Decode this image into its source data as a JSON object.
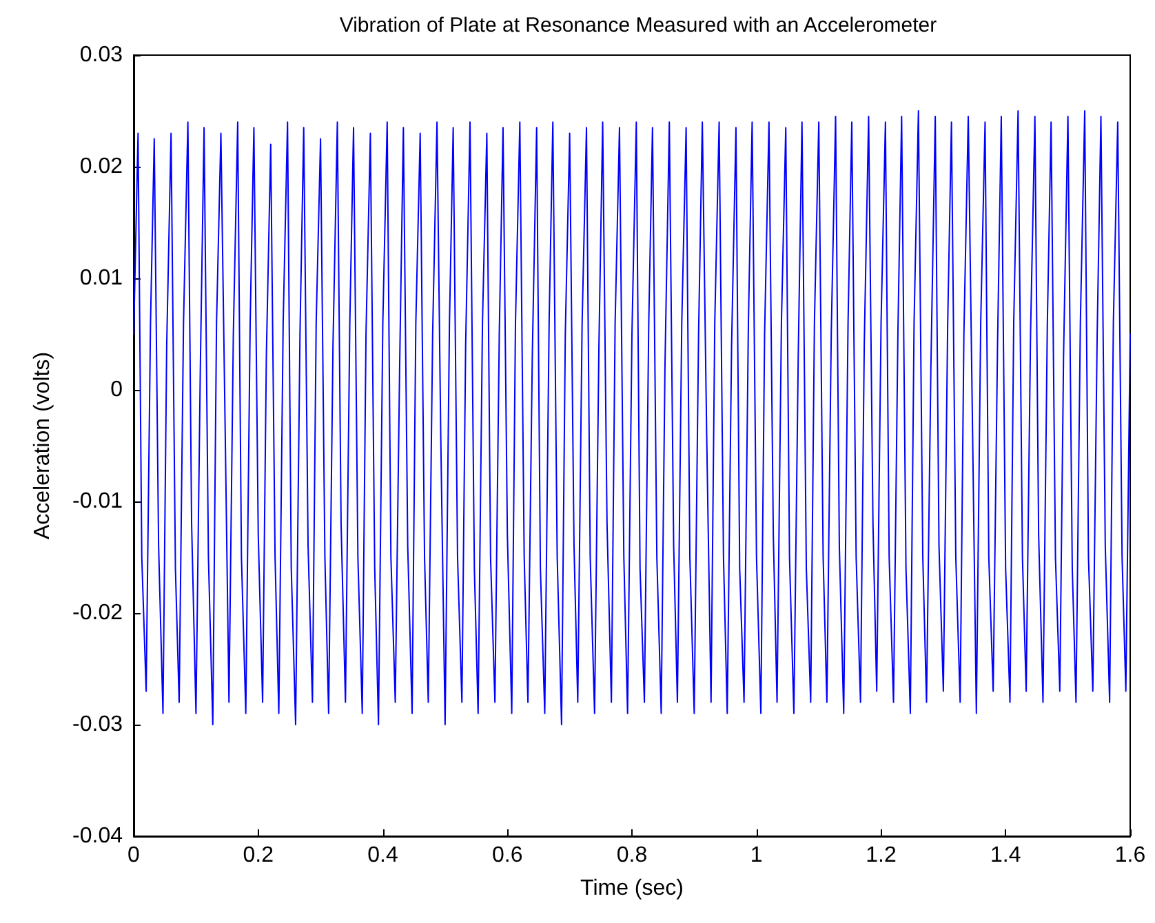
{
  "chart_data": {
    "type": "line",
    "title": "Vibration of Plate at Resonance Measured with an Accelerometer",
    "xlabel": "Time (sec)",
    "ylabel": "Acceleration (volts)",
    "xlim": [
      0,
      1.6
    ],
    "xticks": [
      0,
      0.2,
      0.4,
      0.6,
      0.8,
      1,
      1.2,
      1.4,
      1.6
    ],
    "ylim": [
      -0.04,
      0.03
    ],
    "yticks": [
      -0.04,
      -0.03,
      -0.02,
      -0.01,
      0,
      0.01,
      0.02,
      0.03
    ],
    "grid": false,
    "marker": "none",
    "line_style": "solid",
    "series": [
      {
        "color": "#0000ff",
        "x": [
          0,
          0.007,
          0.013,
          0.02,
          0.027,
          0.033,
          0.04,
          0.047,
          0.053,
          0.06,
          0.067,
          0.073,
          0.08,
          0.087,
          0.093,
          0.1,
          0.107,
          0.113,
          0.12,
          0.127,
          0.133,
          0.14,
          0.147,
          0.153,
          0.16,
          0.167,
          0.173,
          0.18,
          0.187,
          0.193,
          0.2,
          0.207,
          0.213,
          0.22,
          0.227,
          0.233,
          0.24,
          0.247,
          0.253,
          0.26,
          0.267,
          0.273,
          0.28,
          0.287,
          0.293,
          0.3,
          0.307,
          0.313,
          0.32,
          0.327,
          0.333,
          0.34,
          0.347,
          0.353,
          0.36,
          0.367,
          0.373,
          0.38,
          0.387,
          0.393,
          0.4,
          0.407,
          0.413,
          0.42,
          0.427,
          0.433,
          0.44,
          0.447,
          0.453,
          0.46,
          0.467,
          0.473,
          0.48,
          0.487,
          0.493,
          0.5,
          0.507,
          0.513,
          0.52,
          0.527,
          0.533,
          0.54,
          0.547,
          0.553,
          0.56,
          0.567,
          0.573,
          0.58,
          0.587,
          0.593,
          0.6,
          0.607,
          0.613,
          0.62,
          0.627,
          0.633,
          0.64,
          0.647,
          0.653,
          0.66,
          0.667,
          0.673,
          0.68,
          0.687,
          0.693,
          0.7,
          0.707,
          0.713,
          0.72,
          0.727,
          0.733,
          0.74,
          0.747,
          0.753,
          0.76,
          0.767,
          0.773,
          0.78,
          0.787,
          0.793,
          0.8,
          0.807,
          0.813,
          0.82,
          0.827,
          0.833,
          0.84,
          0.847,
          0.853,
          0.86,
          0.867,
          0.873,
          0.88,
          0.887,
          0.893,
          0.9,
          0.907,
          0.913,
          0.92,
          0.927,
          0.933,
          0.94,
          0.947,
          0.953,
          0.96,
          0.967,
          0.973,
          0.98,
          0.987,
          0.993,
          1,
          1.007,
          1.013,
          1.02,
          1.027,
          1.033,
          1.04,
          1.047,
          1.053,
          1.06,
          1.067,
          1.073,
          1.08,
          1.087,
          1.093,
          1.1,
          1.107,
          1.113,
          1.12,
          1.127,
          1.133,
          1.14,
          1.147,
          1.153,
          1.16,
          1.167,
          1.173,
          1.18,
          1.187,
          1.193,
          1.2,
          1.207,
          1.213,
          1.22,
          1.227,
          1.233,
          1.24,
          1.247,
          1.253,
          1.26,
          1.267,
          1.273,
          1.28,
          1.287,
          1.293,
          1.3,
          1.307,
          1.313,
          1.32,
          1.327,
          1.333,
          1.34,
          1.347,
          1.353,
          1.36,
          1.367,
          1.373,
          1.38,
          1.387,
          1.393,
          1.4,
          1.407,
          1.413,
          1.42,
          1.427,
          1.433,
          1.44,
          1.447,
          1.453,
          1.46,
          1.467,
          1.473,
          1.48,
          1.487,
          1.493,
          1.5,
          1.507,
          1.513,
          1.52,
          1.527,
          1.533,
          1.54,
          1.547,
          1.553,
          1.56,
          1.567,
          1.573,
          1.58,
          1.587,
          1.593,
          1.6
        ],
        "values": [
          0.005,
          0.023,
          -0.015,
          -0.027,
          0.006,
          0.0225,
          -0.014,
          -0.029,
          0.004,
          0.023,
          -0.016,
          -0.028,
          0.006,
          0.024,
          -0.012,
          -0.029,
          0.002,
          0.0235,
          -0.015,
          -0.03,
          0.006,
          0.023,
          -0.004,
          -0.028,
          0.005,
          0.024,
          -0.015,
          -0.029,
          0.006,
          0.0235,
          -0.013,
          -0.028,
          0.003,
          0.022,
          -0.015,
          -0.029,
          0.006,
          0.024,
          -0.016,
          -0.03,
          0.005,
          0.0235,
          -0.014,
          -0.028,
          0.006,
          0.0225,
          -0.015,
          -0.029,
          0.004,
          0.024,
          -0.012,
          -0.028,
          0.006,
          0.0235,
          -0.015,
          -0.029,
          0.005,
          0.023,
          -0.016,
          -0.03,
          0.006,
          0.024,
          -0.015,
          -0.028,
          0.002,
          0.0235,
          -0.014,
          -0.029,
          0.006,
          0.023,
          -0.015,
          -0.028,
          0.005,
          0.024,
          -0.004,
          -0.03,
          0.006,
          0.0235,
          -0.015,
          -0.028,
          0.004,
          0.024,
          -0.016,
          -0.029,
          0.006,
          0.023,
          -0.015,
          -0.028,
          0.005,
          0.0235,
          -0.013,
          -0.029,
          0.006,
          0.024,
          -0.015,
          -0.028,
          0.003,
          0.0235,
          -0.016,
          -0.029,
          0.006,
          0.024,
          -0.015,
          -0.03,
          0.005,
          0.023,
          -0.014,
          -0.028,
          0.006,
          0.0235,
          -0.015,
          -0.029,
          0.004,
          0.024,
          -0.012,
          -0.028,
          0.006,
          0.0235,
          -0.015,
          -0.029,
          0.005,
          0.024,
          -0.016,
          -0.028,
          0.006,
          0.0235,
          -0.015,
          -0.029,
          0.002,
          0.024,
          -0.014,
          -0.028,
          0.006,
          0.0235,
          -0.015,
          -0.029,
          0.005,
          0.024,
          -0.004,
          -0.028,
          0.006,
          0.024,
          -0.015,
          -0.029,
          0.004,
          0.0235,
          -0.016,
          -0.028,
          0.006,
          0.024,
          -0.015,
          -0.029,
          0.005,
          0.024,
          -0.013,
          -0.028,
          0.006,
          0.0235,
          -0.015,
          -0.029,
          0.003,
          0.024,
          -0.016,
          -0.028,
          0.006,
          0.024,
          -0.015,
          -0.028,
          0.005,
          0.0245,
          -0.014,
          -0.029,
          0.006,
          0.024,
          -0.015,
          -0.028,
          0.004,
          0.0245,
          -0.012,
          -0.027,
          0.006,
          0.024,
          -0.015,
          -0.028,
          0.005,
          0.0245,
          -0.016,
          -0.029,
          0.006,
          0.025,
          -0.015,
          -0.028,
          0.002,
          0.0245,
          -0.014,
          -0.027,
          0.006,
          0.024,
          -0.015,
          -0.028,
          0.005,
          0.0245,
          -0.004,
          -0.029,
          0.006,
          0.024,
          -0.015,
          -0.027,
          0.004,
          0.0245,
          -0.016,
          -0.028,
          0.006,
          0.025,
          -0.015,
          -0.027,
          0.005,
          0.0245,
          -0.013,
          -0.028,
          0.006,
          0.024,
          -0.015,
          -0.027,
          0.003,
          0.0245,
          -0.016,
          -0.028,
          0.006,
          0.025,
          -0.015,
          -0.027,
          0.005,
          0.0245,
          -0.014,
          -0.028,
          0.006,
          0.024,
          -0.015,
          -0.027,
          0.005
        ]
      }
    ]
  }
}
